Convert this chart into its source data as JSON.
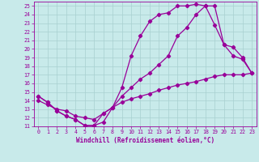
{
  "xlabel": "Windchill (Refroidissement éolien,°C)",
  "xlim": [
    -0.5,
    23.5
  ],
  "ylim": [
    11,
    25.5
  ],
  "xticks": [
    0,
    1,
    2,
    3,
    4,
    5,
    6,
    7,
    8,
    9,
    10,
    11,
    12,
    13,
    14,
    15,
    16,
    17,
    18,
    19,
    20,
    21,
    22,
    23
  ],
  "yticks": [
    11,
    12,
    13,
    14,
    15,
    16,
    17,
    18,
    19,
    20,
    21,
    22,
    23,
    24,
    25
  ],
  "bg_color": "#c8eaea",
  "grid_color": "#a8d0d0",
  "line_color": "#990099",
  "line1_x": [
    0,
    1,
    2,
    3,
    4,
    5,
    6,
    7,
    8,
    9,
    10,
    11,
    12,
    13,
    14,
    15,
    16,
    17,
    18,
    19,
    20,
    21,
    22,
    23
  ],
  "line1_y": [
    14.5,
    13.8,
    12.8,
    12.2,
    11.8,
    11.1,
    11.1,
    11.5,
    13.2,
    15.5,
    19.2,
    21.5,
    23.2,
    24.0,
    24.2,
    25.0,
    25.0,
    25.2,
    25.0,
    25.0,
    20.5,
    19.2,
    18.8,
    17.2
  ],
  "line2_x": [
    0,
    1,
    2,
    3,
    4,
    5,
    6,
    7,
    8,
    9,
    10,
    11,
    12,
    13,
    14,
    15,
    16,
    17,
    18,
    19,
    20,
    21,
    22,
    23
  ],
  "line2_y": [
    14.5,
    13.8,
    12.8,
    12.2,
    11.8,
    11.1,
    11.1,
    12.5,
    13.2,
    14.5,
    15.5,
    16.5,
    17.2,
    18.2,
    19.2,
    21.5,
    22.5,
    24.0,
    25.0,
    22.8,
    20.5,
    20.2,
    19.0,
    17.2
  ],
  "line3_x": [
    0,
    1,
    2,
    3,
    4,
    5,
    6,
    7,
    8,
    9,
    10,
    11,
    12,
    13,
    14,
    15,
    16,
    17,
    18,
    19,
    20,
    21,
    22,
    23
  ],
  "line3_y": [
    14.0,
    13.5,
    13.0,
    12.8,
    12.2,
    12.0,
    11.8,
    12.5,
    13.2,
    13.8,
    14.2,
    14.5,
    14.8,
    15.2,
    15.5,
    15.8,
    16.0,
    16.2,
    16.5,
    16.8,
    17.0,
    17.0,
    17.0,
    17.2
  ]
}
